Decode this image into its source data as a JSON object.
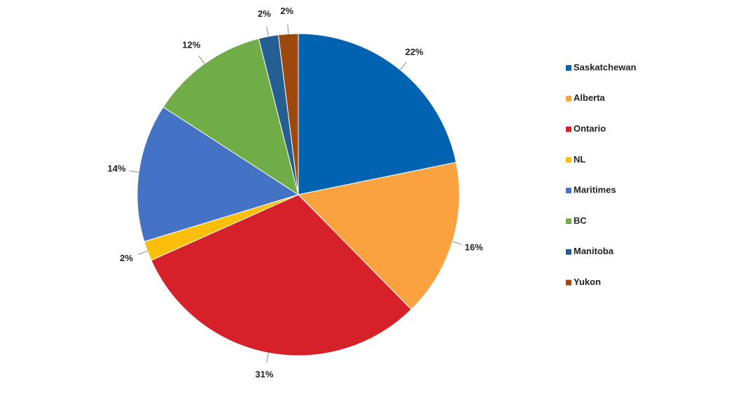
{
  "chart_data": {
    "type": "pie",
    "categories": [
      "Saskatchewan",
      "Alberta",
      "Ontario",
      "NL",
      "Maritimes",
      "BC",
      "Manitoba",
      "Yukon"
    ],
    "values": [
      22,
      16,
      31,
      2,
      14,
      12,
      2,
      2
    ],
    "value_labels": [
      "22%",
      "16%",
      "31%",
      "2%",
      "14%",
      "12%",
      "2%",
      "2%"
    ],
    "colors": [
      "#0063b1",
      "#f9a23f",
      "#d7212a",
      "#fbbf0a",
      "#4472c4",
      "#70ad47",
      "#255e91",
      "#9e480e"
    ],
    "legend": "right"
  }
}
